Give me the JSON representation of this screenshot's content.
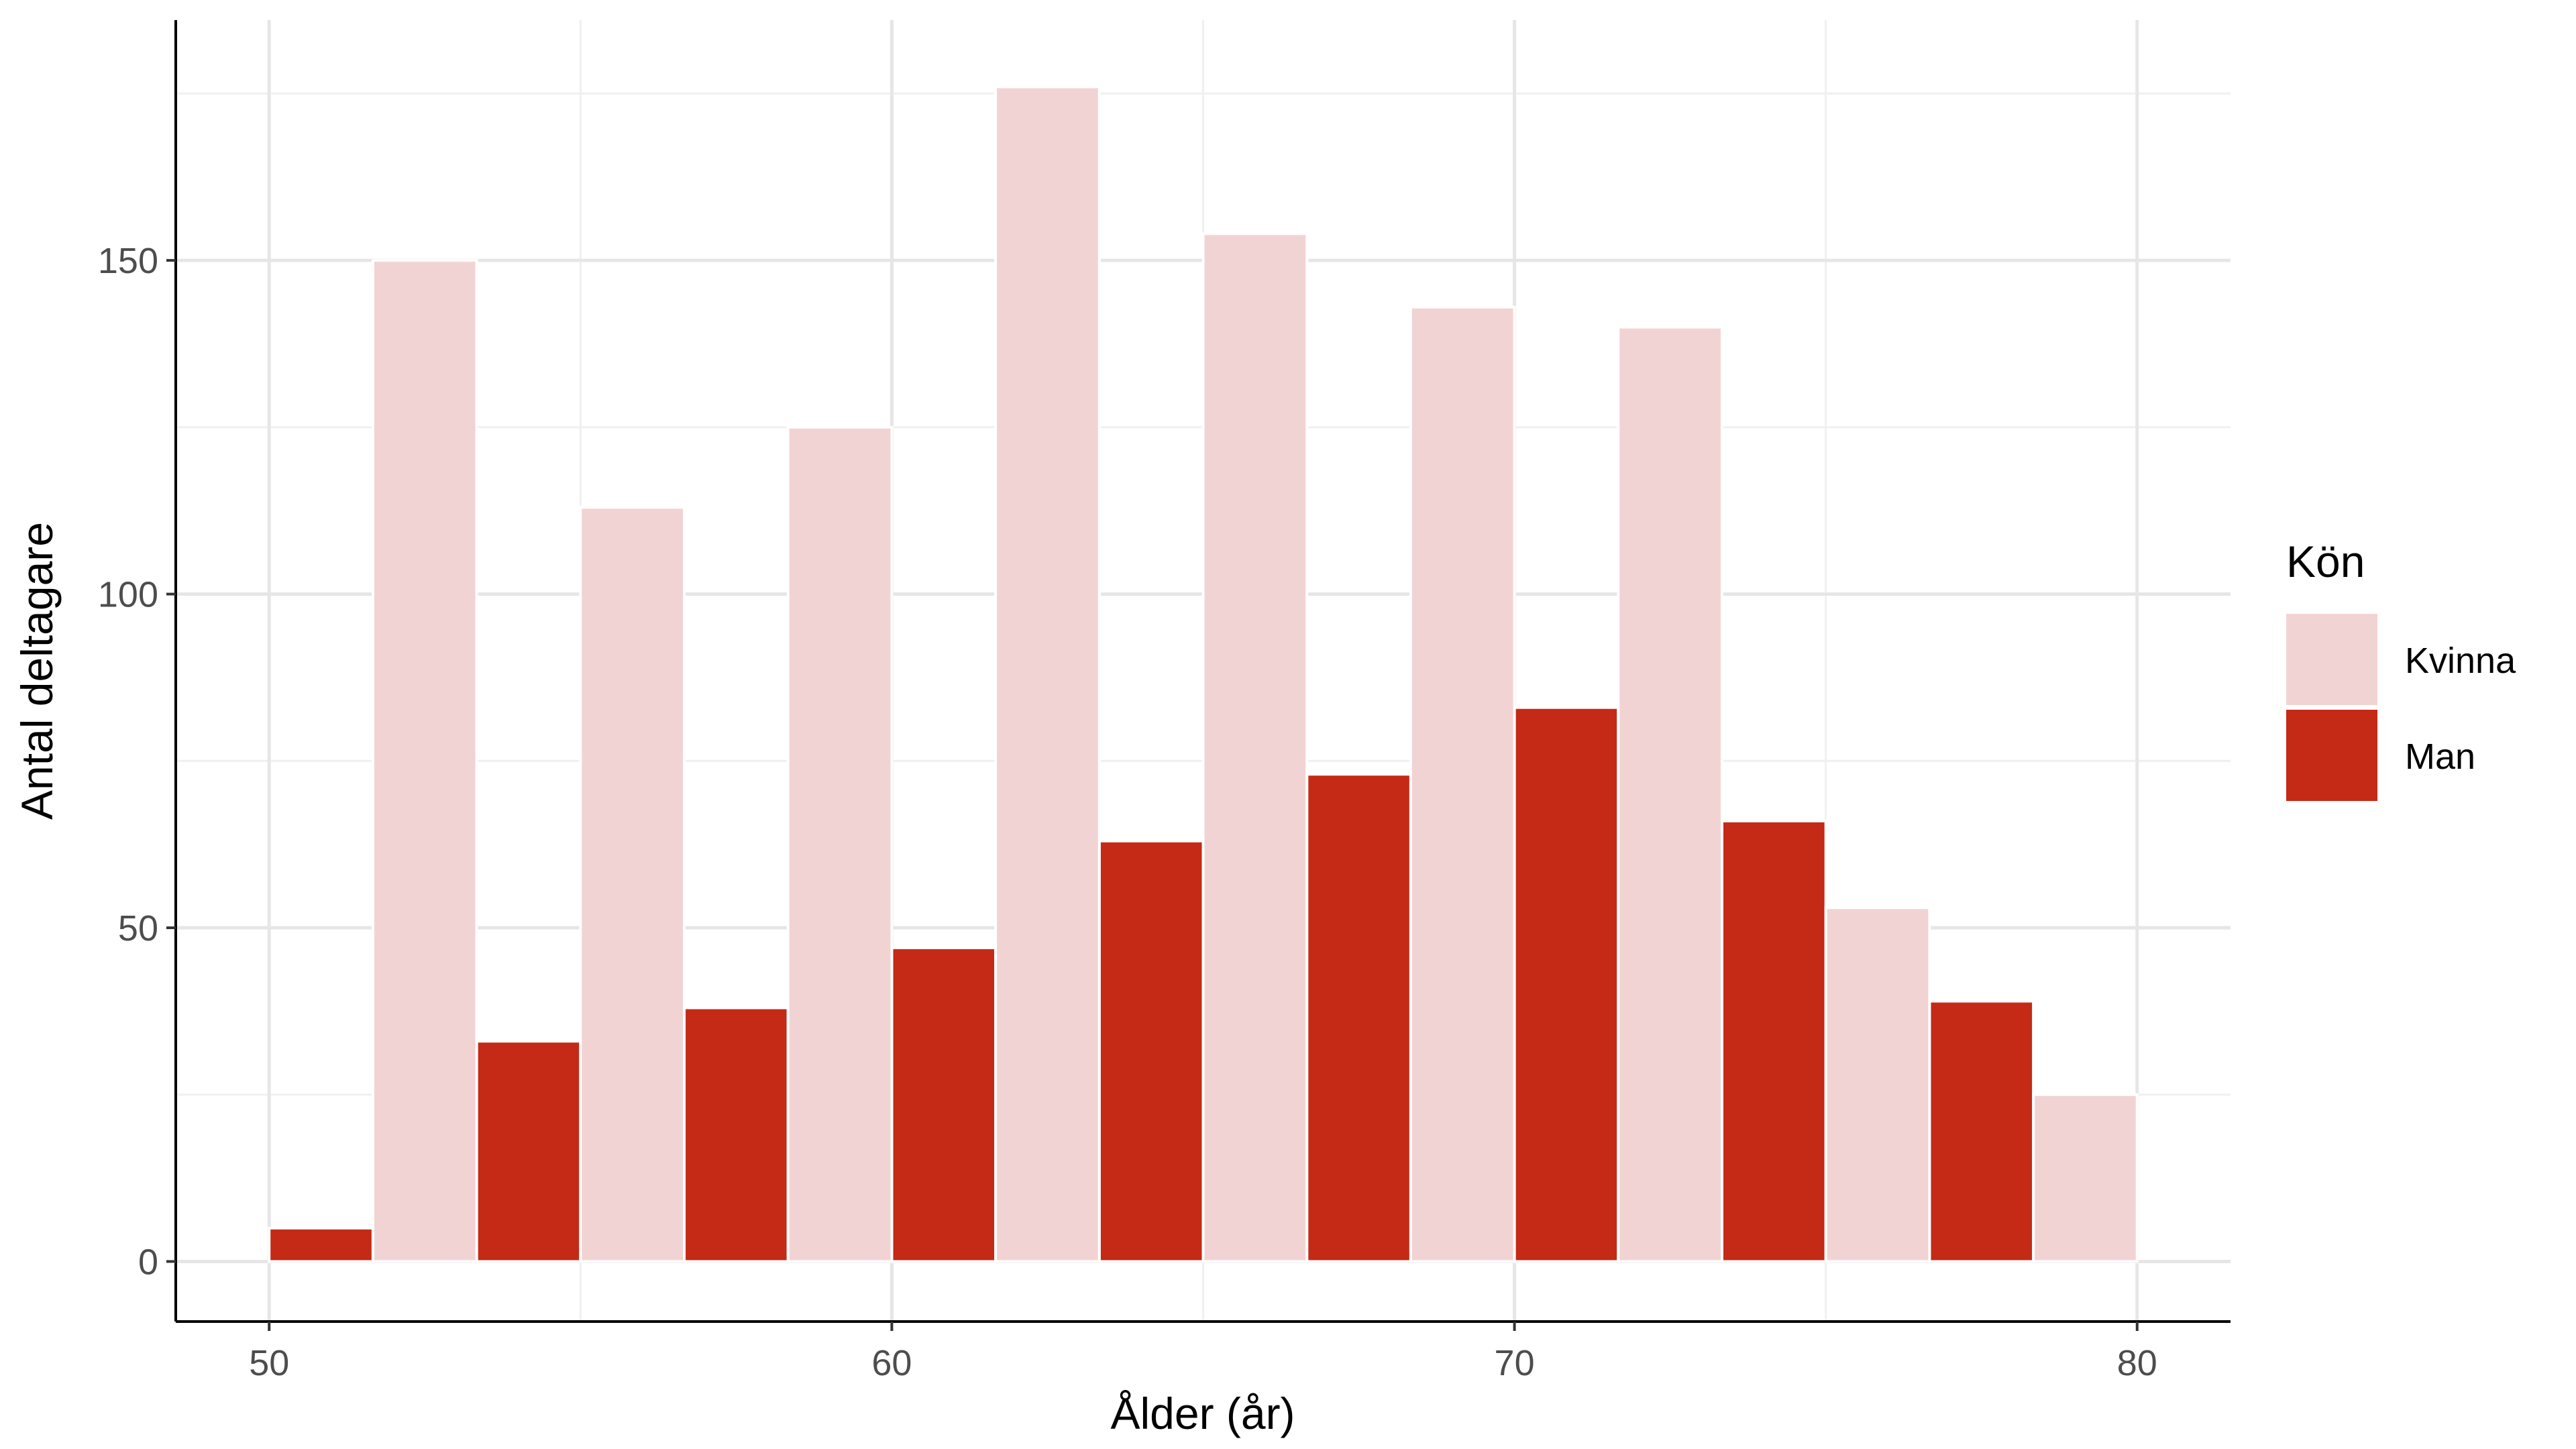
{
  "chart_data": {
    "type": "bar",
    "title": "",
    "xlabel": "Ålder (år)",
    "ylabel": "Antal deltagare",
    "xlim": [
      48.5,
      81.5
    ],
    "ylim": [
      -9,
      186
    ],
    "x_ticks": [
      50,
      60,
      70,
      80
    ],
    "y_ticks": [
      0,
      50,
      100,
      150
    ],
    "x_tick_labels": [
      "50",
      "60",
      "70",
      "80"
    ],
    "y_tick_labels": [
      "0",
      "50",
      "100",
      "150"
    ],
    "grid": true,
    "legend": {
      "title": "Kön",
      "position": "right",
      "entries": [
        "Kvinna",
        "Man"
      ]
    },
    "bin_edges": [
      50,
      53.3333,
      56.6667,
      60,
      63.3333,
      66.6667,
      70,
      73.3333,
      76.6667,
      80
    ],
    "series": [
      {
        "name": "Kvinna",
        "color": "#f2d3d3",
        "values": [
          150,
          113,
          125,
          176,
          154,
          143,
          140,
          53,
          25
        ]
      },
      {
        "name": "Man",
        "color": "#c42a16",
        "values": [
          5,
          33,
          38,
          47,
          63,
          73,
          83,
          66,
          39
        ]
      }
    ],
    "bar_order_within_bin": [
      "Man",
      "Kvinna"
    ]
  }
}
